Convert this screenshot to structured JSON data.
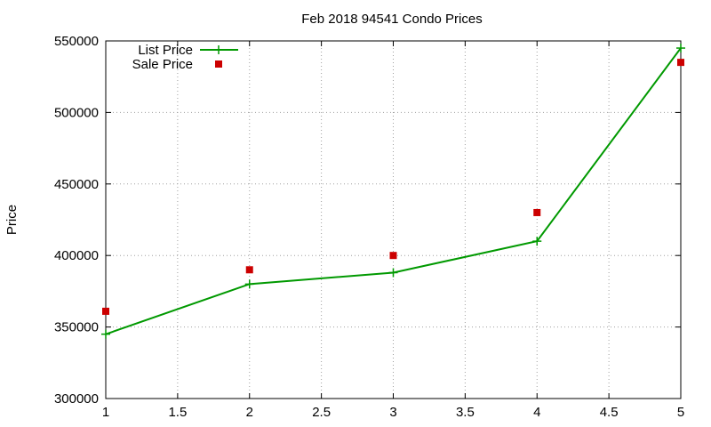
{
  "chart_data": {
    "type": "line",
    "title": "Feb 2018 94541 Condo Prices",
    "xlabel": "",
    "ylabel": "Price",
    "xlim": [
      1,
      5
    ],
    "ylim": [
      300000,
      550000
    ],
    "x_ticks": [
      "1",
      "1.5",
      "2",
      "2.5",
      "3",
      "3.5",
      "4",
      "4.5",
      "5"
    ],
    "y_ticks": [
      "300000",
      "350000",
      "400000",
      "450000",
      "500000",
      "550000"
    ],
    "grid": true,
    "legend_position": "top-left",
    "series": [
      {
        "name": "List Price",
        "style": "linespoints",
        "marker": "plus",
        "color": "#009900",
        "x": [
          1,
          2,
          3,
          4,
          5
        ],
        "y": [
          345000,
          380000,
          388000,
          410000,
          545000
        ]
      },
      {
        "name": "Sale Price",
        "style": "points",
        "marker": "square",
        "color": "#cc0000",
        "x": [
          1,
          2,
          3,
          4,
          5
        ],
        "y": [
          361000,
          390000,
          400000,
          430000,
          535000
        ]
      }
    ]
  }
}
